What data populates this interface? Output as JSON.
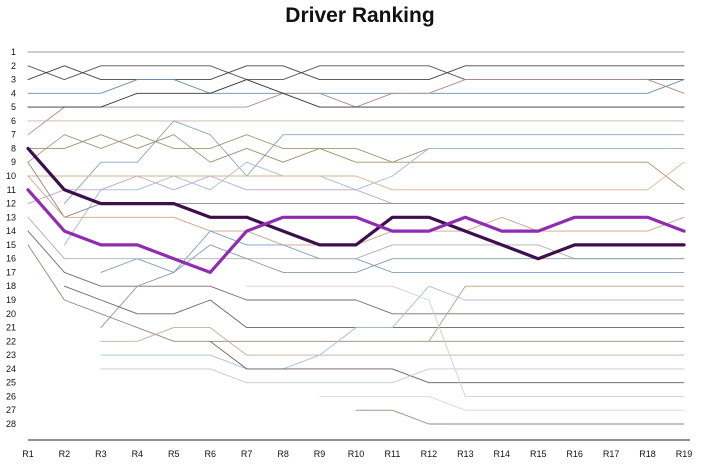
{
  "chart_data": {
    "type": "line",
    "title": "Driver Ranking",
    "xlabel": "",
    "ylabel": "",
    "categories": [
      "R1",
      "R2",
      "R3",
      "R4",
      "R5",
      "R6",
      "R7",
      "R8",
      "R9",
      "R10",
      "R11",
      "R12",
      "R13",
      "R14",
      "R15",
      "R16",
      "R17",
      "R18",
      "R19"
    ],
    "y_ticks": [
      "1",
      "2",
      "3",
      "4",
      "5",
      "6",
      "7",
      "8",
      "9",
      "10",
      "11",
      "12",
      "13",
      "14",
      "15",
      "16",
      "17",
      "18",
      "19",
      "20",
      "21",
      "22",
      "23",
      "24",
      "25",
      "26",
      "27",
      "28"
    ],
    "ylim": [
      1,
      28
    ],
    "y_inverted": true,
    "grid": false,
    "legend": "none",
    "highlight_series": [
      {
        "color": "#3d0f4c",
        "values": [
          8,
          11,
          12,
          12,
          12,
          13,
          13,
          14,
          15,
          15,
          13,
          13,
          14,
          15,
          16,
          15,
          15,
          15,
          15
        ]
      },
      {
        "color": "#8e2db0",
        "values": [
          11,
          14,
          15,
          15,
          16,
          17,
          14,
          13,
          13,
          13,
          14,
          14,
          13,
          14,
          14,
          13,
          13,
          13,
          14
        ]
      }
    ],
    "series": [
      {
        "color": "#9a9a9a",
        "values": [
          1,
          1,
          1,
          1,
          1,
          1,
          1,
          1,
          1,
          1,
          1,
          1,
          1,
          1,
          1,
          1,
          1,
          1,
          1
        ]
      },
      {
        "color": "#555555",
        "values": [
          2,
          3,
          2,
          2,
          2,
          2,
          3,
          3,
          2,
          2,
          2,
          2,
          3,
          3,
          3,
          3,
          3,
          3,
          3
        ]
      },
      {
        "color": "#444444",
        "values": [
          3,
          2,
          3,
          3,
          3,
          3,
          2,
          2,
          3,
          3,
          3,
          3,
          2,
          2,
          2,
          2,
          2,
          2,
          2
        ]
      },
      {
        "color": "#6a8faf",
        "values": [
          4,
          4,
          4,
          3,
          3,
          4,
          4,
          4,
          4,
          4,
          4,
          4,
          4,
          4,
          4,
          4,
          4,
          4,
          3
        ]
      },
      {
        "color": "#b08a8a",
        "values": [
          7,
          5,
          5,
          5,
          5,
          5,
          5,
          4,
          4,
          5,
          4,
          4,
          3,
          3,
          3,
          3,
          3,
          3,
          4
        ]
      },
      {
        "color": "#333333",
        "values": [
          5,
          5,
          5,
          4,
          4,
          4,
          3,
          4,
          5,
          5,
          5,
          5,
          5,
          5,
          5,
          5,
          5,
          5,
          5
        ]
      },
      {
        "color": "#c8b6a6",
        "values": [
          6,
          6,
          6,
          6,
          6,
          6,
          6,
          6,
          6,
          6,
          6,
          6,
          6,
          6,
          6,
          6,
          6,
          6,
          6
        ]
      },
      {
        "color": "#8aa5be",
        "values": [
          null,
          12,
          9,
          9,
          6,
          7,
          10,
          7,
          7,
          7,
          7,
          7,
          7,
          7,
          7,
          7,
          7,
          7,
          7
        ]
      },
      {
        "color": "#9b9b7c",
        "values": [
          9,
          7,
          8,
          7,
          8,
          8,
          7,
          8,
          8,
          8,
          9,
          8,
          8,
          8,
          8,
          8,
          8,
          8,
          8
        ]
      },
      {
        "color": "#a68d6e",
        "values": [
          8,
          8,
          7,
          8,
          7,
          9,
          8,
          9,
          8,
          9,
          9,
          9,
          9,
          9,
          9,
          9,
          9,
          9,
          11
        ]
      },
      {
        "color": "#a2bcd0",
        "values": [
          null,
          15,
          11,
          11,
          10,
          11,
          9,
          10,
          10,
          11,
          10,
          8,
          8,
          8,
          8,
          8,
          8,
          8,
          8
        ]
      },
      {
        "color": "#d6b48a",
        "values": [
          10,
          10,
          10,
          10,
          10,
          10,
          10,
          10,
          10,
          10,
          11,
          11,
          11,
          11,
          11,
          11,
          11,
          11,
          9
        ]
      },
      {
        "color": "#c4a4c8",
        "values": [
          12,
          11,
          11,
          10,
          11,
          10,
          11,
          11,
          11,
          11,
          12,
          12,
          12,
          12,
          12,
          12,
          12,
          12,
          12
        ]
      },
      {
        "color": "#8a8a8a",
        "values": [
          9,
          13,
          12,
          12,
          12,
          12,
          12,
          12,
          12,
          12,
          12,
          12,
          12,
          12,
          12,
          12,
          12,
          12,
          12
        ]
      },
      {
        "color": "#cfa486",
        "values": [
          10,
          13,
          13,
          13,
          13,
          14,
          14,
          15,
          15,
          15,
          14,
          14,
          14,
          13,
          14,
          14,
          14,
          14,
          13
        ]
      },
      {
        "color": "#7aa0c0",
        "values": [
          null,
          null,
          17,
          16,
          17,
          14,
          15,
          15,
          16,
          16,
          17,
          17,
          17,
          17,
          17,
          17,
          17,
          17,
          17
        ]
      },
      {
        "color": "#b0b0b0",
        "values": [
          13,
          16,
          16,
          16,
          16,
          16,
          16,
          16,
          16,
          16,
          15,
          15,
          15,
          15,
          15,
          16,
          16,
          16,
          16
        ]
      },
      {
        "color": "#7a6a6a",
        "values": [
          14,
          17,
          18,
          18,
          18,
          18,
          19,
          19,
          19,
          19,
          20,
          20,
          20,
          20,
          20,
          20,
          20,
          20,
          20
        ]
      },
      {
        "color": "#8a9aab",
        "values": [
          null,
          null,
          21,
          18,
          17,
          15,
          16,
          17,
          17,
          17,
          16,
          16,
          16,
          16,
          16,
          16,
          16,
          16,
          16
        ]
      },
      {
        "color": "#666666",
        "values": [
          null,
          18,
          19,
          20,
          20,
          19,
          21,
          21,
          21,
          21,
          21,
          21,
          21,
          21,
          21,
          21,
          21,
          21,
          21
        ]
      },
      {
        "color": "#998877",
        "values": [
          15,
          19,
          20,
          21,
          22,
          22,
          22,
          22,
          22,
          22,
          22,
          22,
          22,
          22,
          22,
          22,
          22,
          22,
          22
        ]
      },
      {
        "color": "#c0b0a0",
        "values": [
          null,
          null,
          22,
          22,
          21,
          21,
          23,
          23,
          23,
          23,
          23,
          23,
          23,
          23,
          23,
          23,
          23,
          23,
          23
        ]
      },
      {
        "color": "#a8c0d8",
        "values": [
          null,
          null,
          23,
          23,
          23,
          23,
          24,
          24,
          23,
          21,
          21,
          18,
          19,
          19,
          19,
          19,
          19,
          19,
          19
        ]
      },
      {
        "color": "#6e5a5a",
        "values": [
          null,
          null,
          null,
          null,
          null,
          22,
          24,
          24,
          24,
          24,
          24,
          25,
          25,
          25,
          25,
          25,
          25,
          25,
          25
        ]
      },
      {
        "color": "#c9c9c9",
        "values": [
          null,
          null,
          24,
          24,
          24,
          24,
          25,
          25,
          25,
          25,
          25,
          24,
          24,
          24,
          24,
          24,
          24,
          24,
          24
        ]
      },
      {
        "color": "#bba08a",
        "values": [
          null,
          null,
          null,
          null,
          null,
          null,
          null,
          null,
          null,
          null,
          null,
          22,
          18,
          18,
          18,
          18,
          18,
          18,
          18
        ]
      },
      {
        "color": "#d0d0d0",
        "values": [
          null,
          null,
          null,
          null,
          null,
          null,
          18,
          18,
          18,
          18,
          18,
          19,
          26,
          26,
          26,
          26,
          26,
          26,
          26
        ]
      },
      {
        "color": "#e0d8d0",
        "values": [
          null,
          null,
          null,
          null,
          null,
          null,
          null,
          null,
          26,
          26,
          26,
          26,
          27,
          27,
          27,
          27,
          27,
          27,
          27
        ]
      },
      {
        "color": "#9a8a7a",
        "values": [
          null,
          null,
          null,
          null,
          null,
          null,
          null,
          null,
          null,
          27,
          27,
          28,
          28,
          28,
          28,
          28,
          28,
          28,
          28
        ]
      }
    ]
  }
}
